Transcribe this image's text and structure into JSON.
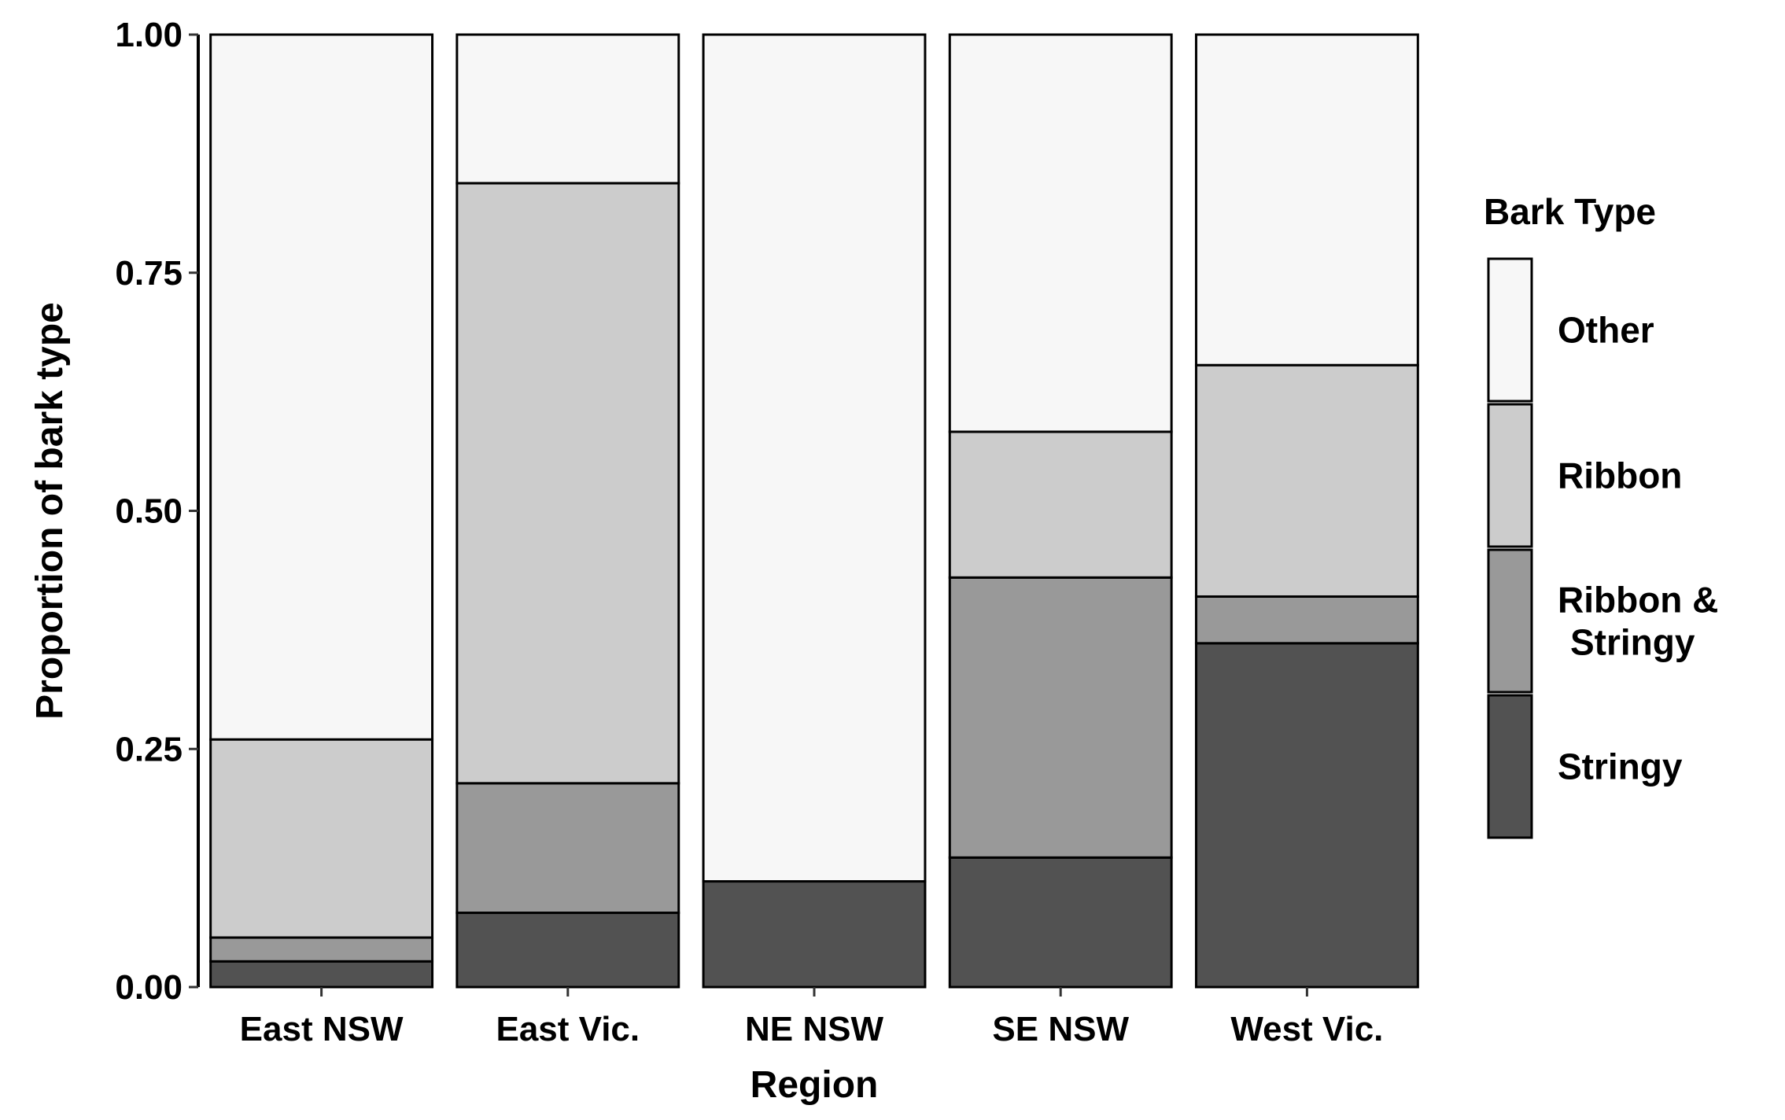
{
  "chart_data": {
    "type": "bar",
    "stacked": true,
    "title": "",
    "xlabel": "Region",
    "ylabel": "Proportion of bark type",
    "ylim": [
      0,
      1
    ],
    "yticks": [
      {
        "value": 0,
        "label": "0.00"
      },
      {
        "value": 0.25,
        "label": "0.25"
      },
      {
        "value": 0.5,
        "label": "0.50"
      },
      {
        "value": 0.75,
        "label": "0.75"
      },
      {
        "value": 1,
        "label": "1.00"
      }
    ],
    "grid": false,
    "legend": {
      "title": "Bark Type",
      "placement": "right"
    },
    "categories": [
      "East NSW",
      "East Vic.",
      "NE NSW",
      "SE NSW",
      "West Vic."
    ],
    "series": [
      {
        "name": "Stringy",
        "label_lines": [
          "Stringy"
        ],
        "color": "#525252",
        "values": [
          0.027,
          0.078,
          0.111,
          0.136,
          0.361
        ]
      },
      {
        "name": "Ribbon & Stringy",
        "label_lines": [
          "Ribbon &",
          "Stringy"
        ],
        "color": "#999999",
        "values": [
          0.025,
          0.136,
          0.0,
          0.294,
          0.049
        ]
      },
      {
        "name": "Ribbon",
        "label_lines": [
          "Ribbon"
        ],
        "color": "#cccccc",
        "values": [
          0.208,
          0.63,
          0.0,
          0.153,
          0.243
        ]
      },
      {
        "name": "Other",
        "label_lines": [
          "Other"
        ],
        "color": "#f7f7f7",
        "values": [
          0.74,
          0.156,
          0.889,
          0.417,
          0.347
        ]
      }
    ]
  }
}
